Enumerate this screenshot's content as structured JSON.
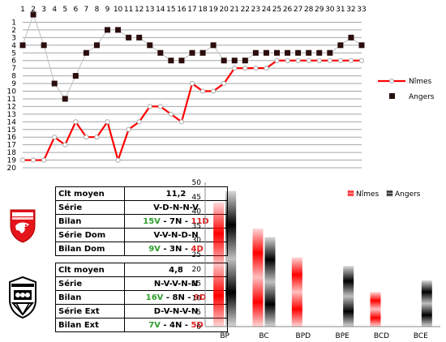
{
  "chart_data": [
    {
      "type": "line",
      "x": [
        1,
        2,
        3,
        4,
        5,
        6,
        7,
        8,
        9,
        10,
        11,
        12,
        13,
        14,
        15,
        16,
        17,
        18,
        19,
        20,
        21,
        22,
        23,
        24,
        25,
        26,
        27,
        28,
        29,
        30,
        31,
        32,
        33
      ],
      "y_ticks": [
        1,
        2,
        3,
        4,
        5,
        6,
        7,
        8,
        9,
        10,
        11,
        12,
        13,
        14,
        15,
        16,
        17,
        18,
        19,
        20
      ],
      "y_inverted": true,
      "ylim": [
        1,
        20
      ],
      "grid": true,
      "legend_position": "right",
      "series": [
        {
          "name": "Nîmes",
          "color": "#ff0000",
          "values": [
            19,
            19,
            19,
            16,
            17,
            14,
            16,
            16,
            14,
            19,
            15,
            14,
            12,
            12,
            13,
            14,
            9,
            10,
            10,
            9,
            7,
            7,
            7,
            7,
            6,
            6,
            6,
            6,
            6,
            6,
            6,
            6,
            6
          ]
        },
        {
          "name": "Angers",
          "color": "#000000",
          "values": [
            4,
            0,
            4,
            9,
            11,
            8,
            5,
            4,
            2,
            2,
            3,
            3,
            4,
            5,
            6,
            6,
            5,
            5,
            4,
            6,
            6,
            6,
            5,
            5,
            5,
            5,
            5,
            5,
            5,
            5,
            4,
            3,
            4
          ]
        }
      ]
    },
    {
      "type": "bar",
      "categories": [
        "BP",
        "BC",
        "BPD",
        "BPE",
        "BCD",
        "BCE"
      ],
      "ylim": [
        0,
        50
      ],
      "y_ticks": [
        0,
        5,
        10,
        15,
        20,
        25,
        30,
        35,
        40,
        45,
        50
      ],
      "grid": false,
      "legend_position": "top-right",
      "series": [
        {
          "name": "Nîmes",
          "color": "#ff0000",
          "values": [
            43,
            34,
            24,
            0,
            12,
            0
          ]
        },
        {
          "name": "Angers",
          "color": "#000000",
          "values": [
            47,
            31,
            0,
            21,
            0,
            16
          ]
        }
      ]
    }
  ],
  "colors": {
    "nimes": "#ff0000",
    "angers": "#000000",
    "grid": "#a6a6a6",
    "wins": "#2e9f2e",
    "losses": "#e0201f"
  },
  "logos": {
    "nimes": "nimes-olympique-crest",
    "angers": "angers-sco-crest"
  },
  "nimes_table": {
    "rows": [
      {
        "label": "Clt moyen",
        "value": "11,2"
      },
      {
        "label": "Série",
        "value": "V-D-N-N-V"
      },
      {
        "label": "Bilan",
        "parts": [
          "15V",
          " - ",
          "7N",
          " - ",
          "11D"
        ]
      },
      {
        "label": "Série Dom",
        "value": "V-V-N-D-N"
      },
      {
        "label": "Bilan Dom",
        "parts": [
          "9V",
          " - ",
          "3N",
          " - ",
          "4D"
        ]
      }
    ]
  },
  "angers_table": {
    "rows": [
      {
        "label": "Clt moyen",
        "value": "4,8"
      },
      {
        "label": "Série",
        "value": "N-V-V-N-N"
      },
      {
        "label": "Bilan",
        "parts": [
          "16V",
          " - ",
          "8N",
          " - ",
          "9D"
        ]
      },
      {
        "label": "Série Ext",
        "value": "D-V-N-V-N"
      },
      {
        "label": "Bilan Ext",
        "parts": [
          "7V",
          " - ",
          "4N",
          " - ",
          "5D"
        ]
      }
    ]
  }
}
